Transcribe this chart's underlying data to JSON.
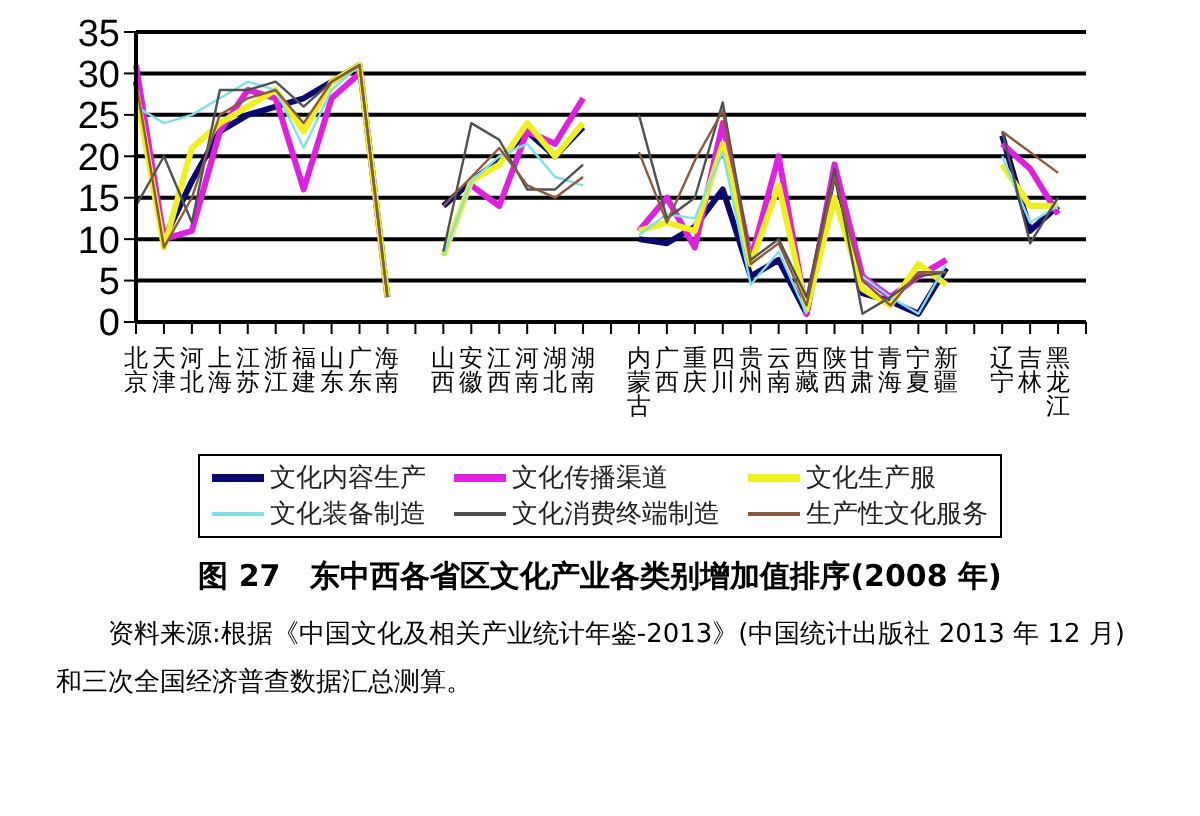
{
  "chart_data": {
    "type": "line",
    "title": "图 27　东中西各省区文化产业各类别增加值排序(2008 年)",
    "annotations": [
      "资料来源:根据《中国文化及相关产业统计年鉴-2013》(中国统计出版社 2013 年 12 月)和三次全国经济普查数据汇总测算。"
    ],
    "categories": [
      "北京",
      "天津",
      "河北",
      "上海",
      "江苏",
      "浙江",
      "福建",
      "山东",
      "广东",
      "海南",
      null,
      "山西",
      "安徽",
      "江西",
      "河南",
      "湖北",
      "湖南",
      null,
      "内蒙古",
      "广西",
      "重庆",
      "四川",
      "贵州",
      "云南",
      "西藏",
      "陕西",
      "甘肃",
      "青海",
      "宁夏",
      "新疆",
      null,
      "辽宁",
      "吉林",
      "黑龙江",
      null
    ],
    "series": [
      {
        "name": "文化内容生产",
        "color": "#0a0a6e",
        "values": [
          29,
          10,
          17,
          23,
          25,
          26,
          27,
          29,
          31,
          3,
          null,
          14,
          17,
          19.5,
          23,
          20,
          23.5,
          null,
          10,
          9.5,
          11.5,
          16,
          5.5,
          7.5,
          1,
          18.5,
          3.5,
          2.5,
          1,
          6.5,
          null,
          22.5,
          11,
          14,
          null
        ]
      },
      {
        "name": "文化传播渠道",
        "color": "#e020e0",
        "values": [
          31,
          10,
          11,
          23,
          28,
          27,
          16,
          27,
          30,
          null,
          null,
          null,
          16.5,
          14,
          23,
          21.5,
          27,
          null,
          11,
          15,
          9,
          24,
          7.5,
          20,
          1,
          19,
          5.5,
          3,
          5.5,
          7.5,
          null,
          21.5,
          18.5,
          13,
          null
        ]
      },
      {
        "name": "文化生产服",
        "color": "#f0f020",
        "values": [
          28,
          9,
          21,
          24,
          26,
          28,
          23,
          29,
          31,
          3,
          null,
          8,
          17,
          19,
          24,
          20,
          24,
          null,
          11,
          12,
          11,
          21.5,
          7,
          16.5,
          1.5,
          15,
          4,
          2,
          7,
          4.5,
          null,
          19,
          14,
          14,
          null
        ]
      },
      {
        "name": "文化装备制造",
        "color": "#80e0e8",
        "values": [
          26,
          24,
          25,
          27,
          29,
          28,
          21,
          28,
          31,
          3,
          null,
          8,
          17,
          20,
          21.5,
          17.5,
          16.5,
          null,
          10.5,
          13,
          12.5,
          20.5,
          4.5,
          8.5,
          1,
          null,
          5.5,
          3,
          1,
          7,
          null,
          20,
          12,
          14,
          null
        ]
      },
      {
        "name": "文化消费终端制造",
        "color": "#505050",
        "values": [
          14,
          20,
          12,
          28,
          28,
          29,
          26,
          29,
          31,
          3,
          null,
          8.5,
          24,
          22,
          16,
          16,
          19,
          null,
          25,
          12.5,
          15,
          26.5,
          7.5,
          10,
          3,
          18.5,
          1,
          3,
          5.5,
          6,
          null,
          23,
          9.5,
          15,
          null
        ]
      },
      {
        "name": "生产性文化服务",
        "color": "#8b5a3c",
        "values": [
          29,
          9,
          15,
          25,
          27,
          28,
          24,
          29,
          31,
          3,
          null,
          14,
          17.5,
          21,
          16.5,
          15,
          17.5,
          null,
          20.5,
          12,
          19.5,
          25.5,
          7,
          9.5,
          2,
          17.5,
          5,
          2,
          6,
          6,
          null,
          23,
          20.5,
          18,
          null
        ]
      }
    ],
    "ylim": [
      0,
      35
    ],
    "yticks": [
      0,
      5,
      10,
      15,
      20,
      25,
      30,
      35
    ],
    "grid": "y",
    "legend": "bottom",
    "marker": "none",
    "line_style": "solid"
  }
}
